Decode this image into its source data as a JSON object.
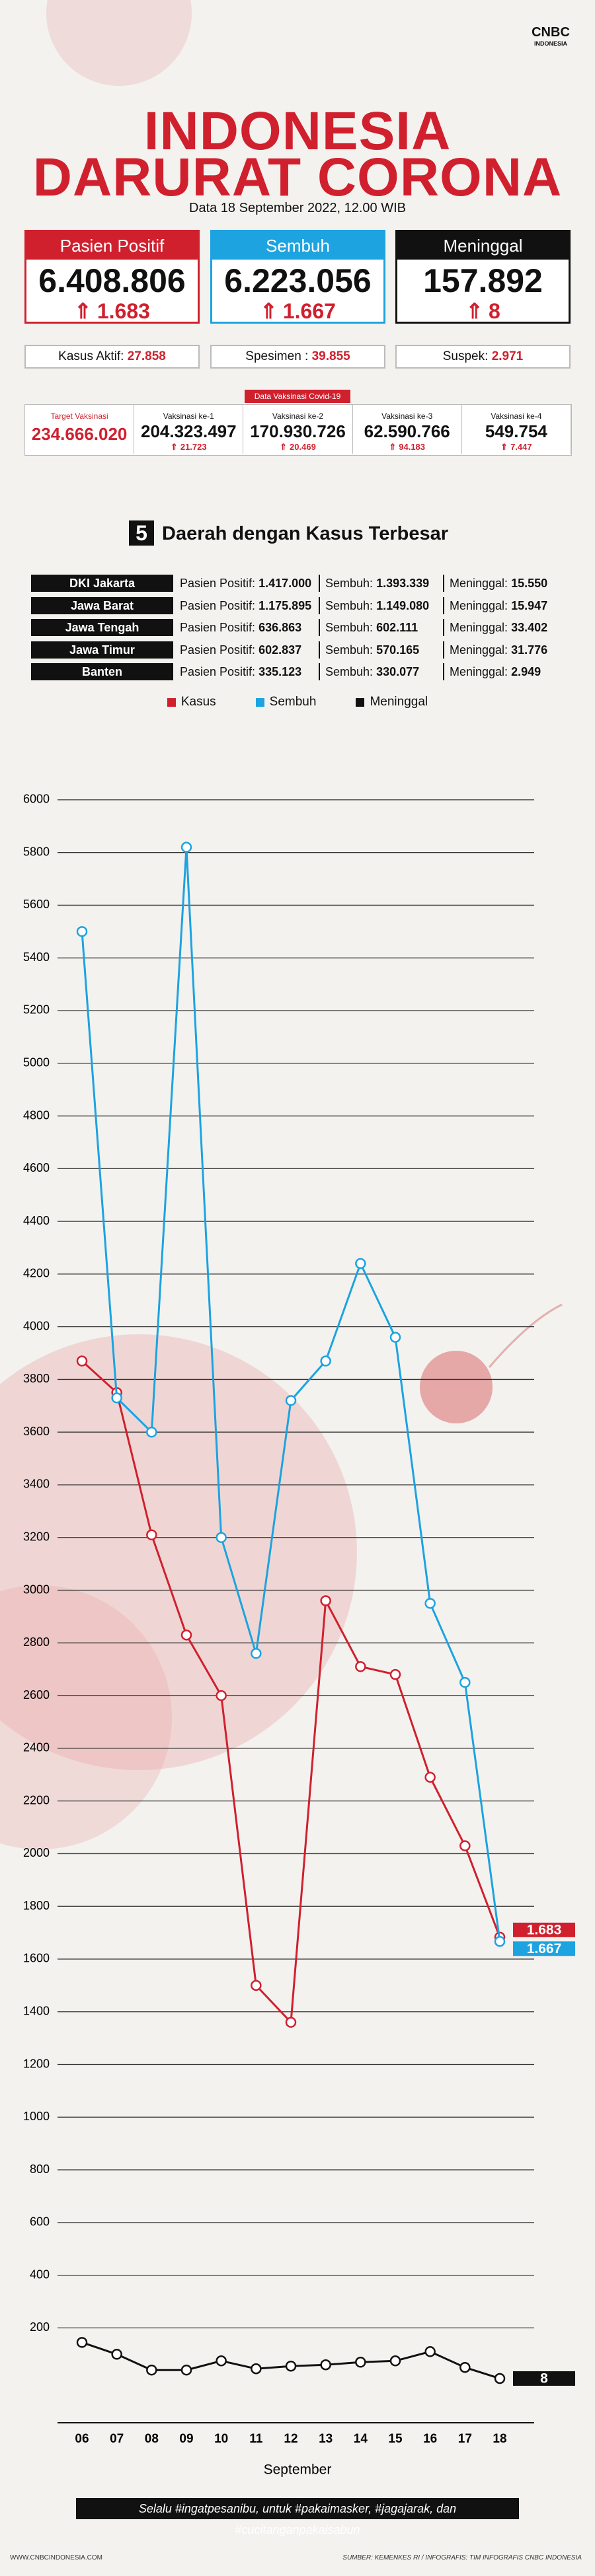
{
  "logo": {
    "brand": "CNBC",
    "sub": "INDONESIA"
  },
  "header": {
    "title_line1": "INDONESIA",
    "title_line2": "DARURAT CORONA",
    "date": "Data 18 September 2022, 12.00 WIB"
  },
  "stats": [
    {
      "label": "Pasien Positif",
      "value": "6.408.806",
      "change": "1.683",
      "color": "#d0202e"
    },
    {
      "label": "Sembuh",
      "value": "6.223.056",
      "change": "1.667",
      "color": "#1ca3e0"
    },
    {
      "label": "Meninggal",
      "value": "157.892",
      "change": "8",
      "color": "#111111"
    }
  ],
  "summary": [
    {
      "label": "Kasus Aktif:",
      "value": "27.858"
    },
    {
      "label": "Spesimen :",
      "value": "39.855"
    },
    {
      "label": "Suspek:",
      "value": "2.971"
    }
  ],
  "vaccination": {
    "title": "Data Vaksinasi Covid-19",
    "items": [
      {
        "label": "Target Vaksinasi",
        "value": "234.666.020"
      },
      {
        "label": "Vaksinasi ke-1",
        "value": "204.323.497",
        "change": "21.723"
      },
      {
        "label": "Vaksinasi ke-2",
        "value": "170.930.726",
        "change": "20.469"
      },
      {
        "label": "Vaksinasi ke-3",
        "value": "62.590.766",
        "change": "94.183"
      },
      {
        "label": "Vaksinasi ke-4",
        "value": "549.754",
        "change": "7.447"
      }
    ]
  },
  "regions": {
    "count": "5",
    "title": "Daerah dengan Kasus Terbesar",
    "columns": [
      "Pasien Positif:",
      "Sembuh:",
      "Meninggal:"
    ],
    "rows": [
      {
        "name": "DKI Jakarta",
        "values": [
          "1.417.000",
          "1.393.339",
          "15.550"
        ]
      },
      {
        "name": "Jawa Barat",
        "values": [
          "1.175.895",
          "1.149.080",
          "15.947"
        ]
      },
      {
        "name": "Jawa Tengah",
        "values": [
          "636.863",
          "602.111",
          "33.402"
        ]
      },
      {
        "name": "Jawa Timur",
        "values": [
          "602.837",
          "570.165",
          "31.776"
        ]
      },
      {
        "name": "Banten",
        "values": [
          "335.123",
          "330.077",
          "2.949"
        ]
      }
    ]
  },
  "chart_data": {
    "type": "line",
    "x_label": "September",
    "categories": [
      "06",
      "07",
      "08",
      "09",
      "10",
      "11",
      "12",
      "13",
      "14",
      "15",
      "16",
      "17",
      "18"
    ],
    "series": [
      {
        "name": "Kasus",
        "color": "#d0202e",
        "values": [
          3870,
          3750,
          3210,
          2830,
          2600,
          1500,
          1360,
          2960,
          2710,
          2680,
          2290,
          2030,
          1683
        ],
        "value_labels": [
          null,
          null,
          null,
          null,
          null,
          null,
          null,
          null,
          null,
          null,
          null,
          null,
          "1.683"
        ]
      },
      {
        "name": "Sembuh",
        "color": "#1ca3e0",
        "values": [
          5500,
          3730,
          3600,
          5820,
          3200,
          2760,
          3720,
          3870,
          4240,
          3960,
          2950,
          2650,
          1667
        ],
        "value_labels": [
          null,
          null,
          null,
          null,
          null,
          null,
          null,
          null,
          null,
          null,
          null,
          null,
          "1.667"
        ]
      },
      {
        "name": "Meninggal",
        "color": "#111111",
        "values": [
          145,
          100,
          40,
          40,
          75,
          45,
          55,
          60,
          70,
          75,
          110,
          50,
          8
        ]
      }
    ],
    "ylim": [
      -160,
      6100
    ],
    "yticks": [
      200,
      400,
      600,
      800,
      1000,
      1200,
      1400,
      1600,
      1800,
      2000,
      2200,
      2400,
      2600,
      2800,
      3000,
      3200,
      3400,
      3600,
      3800,
      4000,
      4200,
      4400,
      4600,
      4800,
      5000,
      5200,
      5400,
      5600,
      5800,
      6000
    ],
    "grid": true
  },
  "banner": "Selalu #ingatpesanibu, untuk #pakaimasker, #jagajarak, dan #cucitanganpakaisabun",
  "footer": {
    "left": "WWW.CNBCINDONESIA.COM",
    "right": "SUMBER: KEMENKES RI / INFOGRAFIS: TIM INFOGRAFIS CNBC INDONESIA"
  }
}
